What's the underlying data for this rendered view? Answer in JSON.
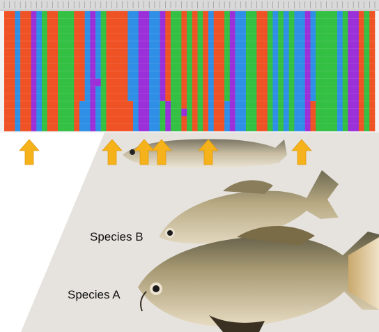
{
  "labels": {
    "species_b": "Species B",
    "species_a": "Species A"
  },
  "alignment": {
    "rows": 16,
    "nucleotide_colors": {
      "A": "#33c043",
      "C": "#2f8fe6",
      "G": "#9b30d9",
      "T": "#ef5224"
    },
    "tracks": [
      "TTCTTGCATTAAATTCGCATTTTCCGGCCGTAATATATCTTAGCCAATTACACACCGCAAAACAGGTAT",
      "TTCTTGCATTAAATTCGCATTTTCCGGCCGTAATATATCTTAGCCAATTACACACCGCAAAACAGGTAT"
    ]
  },
  "markers": {
    "color": "#f6b21b",
    "count": 6
  },
  "colors": {
    "background": "#ffffff",
    "photo_backdrop": "#e6e3de"
  }
}
